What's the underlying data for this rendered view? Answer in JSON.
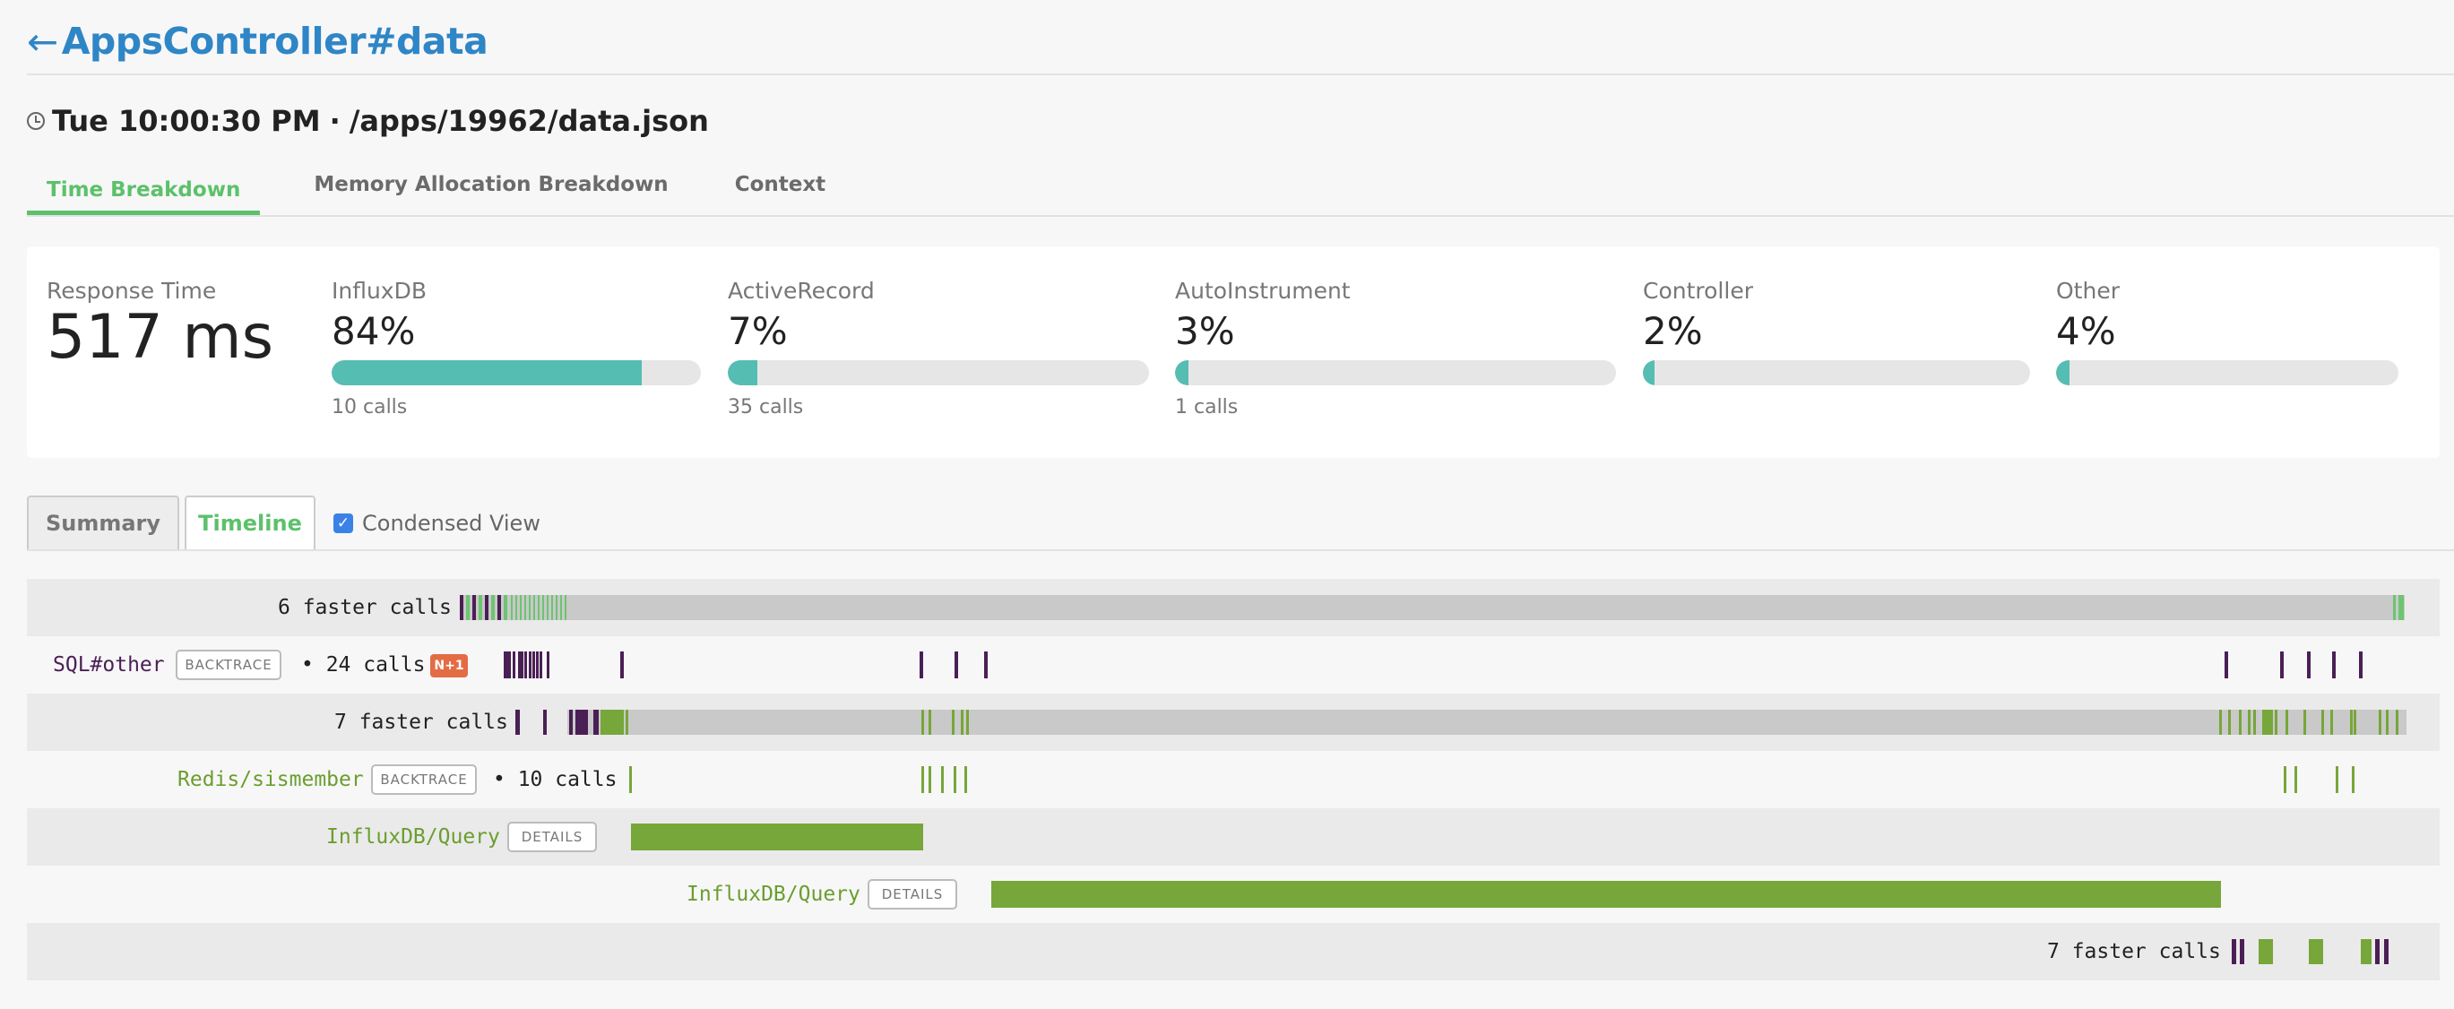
{
  "header": {
    "back_arrow": "←",
    "title": "AppsController#data"
  },
  "subtitle": {
    "time": "Tue 10:00:30 PM",
    "separator": "·",
    "path": "/apps/19962/data.json"
  },
  "tabs": [
    {
      "label": "Time Breakdown",
      "active": true
    },
    {
      "label": "Memory Allocation Breakdown",
      "active": false
    },
    {
      "label": "Context",
      "active": false
    }
  ],
  "metrics": {
    "response": {
      "label": "Response Time",
      "value": "517 ms"
    },
    "items": [
      {
        "label": "InfluxDB",
        "value": "84%",
        "fill": 0.84,
        "calls": "10 calls"
      },
      {
        "label": "ActiveRecord",
        "value": "7%",
        "fill": 0.07,
        "calls": "35 calls"
      },
      {
        "label": "AutoInstrument",
        "value": "3%",
        "fill": 0.03,
        "calls": "1 calls"
      },
      {
        "label": "Controller",
        "value": "2%",
        "fill": 0.02,
        "calls": ""
      },
      {
        "label": "Other",
        "value": "4%",
        "fill": 0.04,
        "calls": ""
      }
    ],
    "bar_color": "#56bdb2"
  },
  "subtabs": {
    "summary": "Summary",
    "timeline": "Timeline",
    "condensed_label": "Condensed View",
    "condensed_checked": true
  },
  "rows": [
    {
      "label": "6 faster calls"
    },
    {
      "name": "SQL#other",
      "backtrace": "BACKTRACE",
      "calls": "• 24 calls",
      "badge": "N+1"
    },
    {
      "label": "7 faster calls"
    },
    {
      "name": "Redis/sismember",
      "backtrace": "BACKTRACE",
      "calls": "• 10 calls"
    },
    {
      "name": "InfluxDB/Query",
      "details": "DETAILS"
    },
    {
      "name": "InfluxDB/Query",
      "details": "DETAILS"
    },
    {
      "label": "7 faster calls"
    }
  ],
  "colors": {
    "purple": "#4a1f55",
    "green": "#77a63a",
    "light_green": "#6cc56f",
    "accent": "#5cc16a",
    "link": "#2f86c6",
    "badge": "#e36c45"
  }
}
